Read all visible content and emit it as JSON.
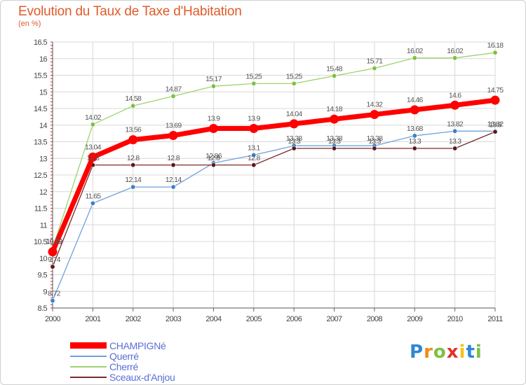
{
  "header": {
    "title": "Evolution du Taux de Taxe d'Habitation",
    "unit": "(en %)"
  },
  "brand": {
    "name": "Proxiti",
    "letters": [
      "P",
      "r",
      "o",
      "x",
      "i",
      "t",
      "i"
    ],
    "colors": [
      "#2e86d6",
      "#f08a1c",
      "#7bc043",
      "#e0342d",
      "#f2c318",
      "#2e86d6",
      "#7bc043"
    ]
  },
  "chart_data": {
    "type": "line",
    "x": [
      "2000",
      "2001",
      "2002",
      "2003",
      "2004",
      "2005",
      "2006",
      "2007",
      "2008",
      "2009",
      "2010",
      "2011"
    ],
    "ylim": [
      8.5,
      16.5
    ],
    "yticks": [
      "8.5",
      "9",
      "9.5",
      "10",
      "10.5",
      "11",
      "11.5",
      "12",
      "12.5",
      "13",
      "13.5",
      "14",
      "14.5",
      "15",
      "15.5",
      "16",
      "16.5"
    ],
    "grid": true,
    "legend_position": "bottom-left",
    "series": [
      {
        "name": "CHAMPIGNé",
        "color": "#ff0000",
        "values": [
          10.19,
          13.04,
          13.56,
          13.69,
          13.9,
          13.9,
          14.04,
          14.18,
          14.32,
          14.46,
          14.6,
          14.75
        ],
        "labels": [
          "10.19",
          "13.04",
          "13.56",
          "13.69",
          "13.9",
          "13.9",
          "14.04",
          "14.18",
          "14.32",
          "14.46",
          "14.6",
          "14.75"
        ]
      },
      {
        "name": "Querré",
        "color": "#6fa2d8",
        "values": [
          8.72,
          11.65,
          12.14,
          12.14,
          12.86,
          13.1,
          13.38,
          13.38,
          13.38,
          13.68,
          13.82,
          13.82
        ],
        "labels": [
          "8.72",
          "11.65",
          "12.14",
          "12.14",
          "12.86",
          "13.1",
          "13.38",
          "13.38",
          "13.38",
          "13.68",
          "13.82",
          "13.82"
        ]
      },
      {
        "name": "Cherré",
        "color": "#9ed36f",
        "values": [
          10.29,
          14.02,
          14.58,
          14.87,
          15.17,
          15.25,
          15.25,
          15.48,
          15.71,
          16.02,
          16.02,
          16.18
        ],
        "labels": [
          "10.29",
          "14.02",
          "14.58",
          "14.87",
          "15.17",
          "15.25",
          "15.25",
          "15.48",
          "15.71",
          "16.02",
          "16.02",
          "16.18"
        ]
      },
      {
        "name": "Sceaux-d'Anjou",
        "color": "#7a2a2a",
        "values": [
          9.74,
          12.8,
          12.8,
          12.8,
          12.8,
          12.8,
          13.3,
          13.3,
          13.3,
          13.3,
          13.3,
          13.8
        ],
        "labels": [
          "9.74",
          "12.8",
          "12.8",
          "12.8",
          "12.8",
          "12.8",
          "13.3",
          "13.3",
          "13.3",
          "13.3",
          "13.3",
          "13.8"
        ]
      }
    ]
  }
}
